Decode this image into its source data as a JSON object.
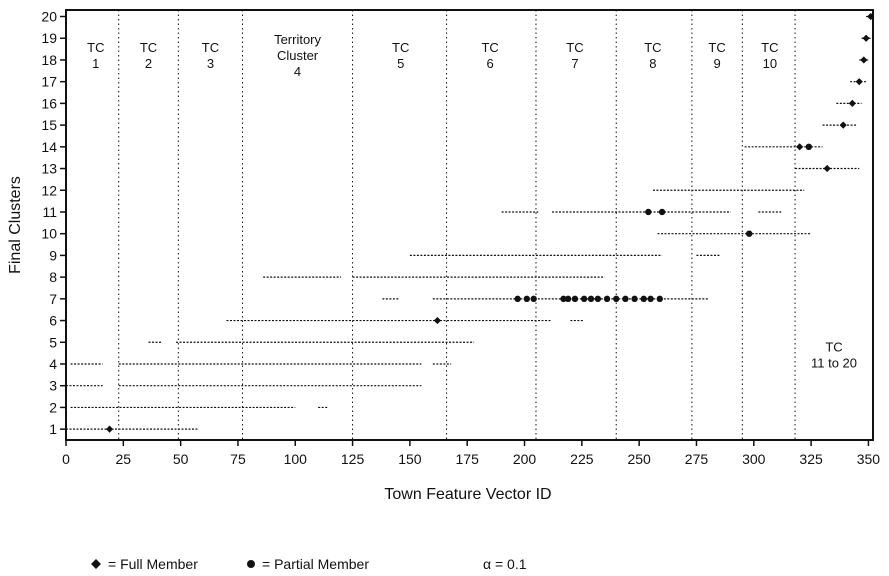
{
  "chart_data": {
    "type": "scatter",
    "xlabel": "Town Feature Vector ID",
    "ylabel": "Final Clusters",
    "xlim": [
      0,
      352
    ],
    "ylim": [
      0.5,
      20.3
    ],
    "x_ticks": [
      0,
      25,
      50,
      75,
      100,
      125,
      150,
      175,
      200,
      225,
      250,
      275,
      300,
      325,
      350
    ],
    "y_ticks": [
      1,
      2,
      3,
      4,
      5,
      6,
      7,
      8,
      9,
      10,
      11,
      12,
      13,
      14,
      15,
      16,
      17,
      18,
      19,
      20
    ],
    "grid": false,
    "boundaries": [
      23,
      49,
      77,
      125,
      166,
      205,
      240,
      273,
      295,
      318
    ],
    "annotations": [
      {
        "lines": [
          "TC",
          "1"
        ],
        "x": 13,
        "y": 18
      },
      {
        "lines": [
          "TC",
          "2"
        ],
        "x": 36,
        "y": 18
      },
      {
        "lines": [
          "TC",
          "3"
        ],
        "x": 63,
        "y": 18
      },
      {
        "lines": [
          "Territory",
          "Cluster",
          "4"
        ],
        "x": 101,
        "y": 18
      },
      {
        "lines": [
          "TC",
          "5"
        ],
        "x": 146,
        "y": 18
      },
      {
        "lines": [
          "TC",
          "6"
        ],
        "x": 185,
        "y": 18
      },
      {
        "lines": [
          "TC",
          "7"
        ],
        "x": 222,
        "y": 18
      },
      {
        "lines": [
          "TC",
          "8"
        ],
        "x": 256,
        "y": 18
      },
      {
        "lines": [
          "TC",
          "9"
        ],
        "x": 284,
        "y": 18
      },
      {
        "lines": [
          "TC",
          "10"
        ],
        "x": 307,
        "y": 18
      },
      {
        "lines": [
          "TC",
          "11 to 20"
        ],
        "x": 335,
        "y": 4.2
      }
    ],
    "series": [
      {
        "name": "Full Member",
        "points": [
          [
            19,
            1
          ],
          [
            162,
            6
          ],
          [
            332,
            13
          ],
          [
            320,
            14
          ],
          [
            339,
            15
          ],
          [
            343,
            16
          ],
          [
            346,
            17
          ],
          [
            348,
            18
          ],
          [
            349,
            19
          ],
          [
            351,
            20
          ]
        ]
      },
      {
        "name": "Partial Member",
        "points": [
          [
            197,
            7
          ],
          [
            201,
            7
          ],
          [
            204,
            7
          ],
          [
            217,
            7
          ],
          [
            219,
            7
          ],
          [
            222,
            7
          ],
          [
            226,
            7
          ],
          [
            229,
            7
          ],
          [
            232,
            7
          ],
          [
            236,
            7
          ],
          [
            240,
            7
          ],
          [
            244,
            7
          ],
          [
            248,
            7
          ],
          [
            252,
            7
          ],
          [
            255,
            7
          ],
          [
            259,
            7
          ],
          [
            298,
            10
          ],
          [
            254,
            11
          ],
          [
            260,
            11
          ],
          [
            324,
            14
          ]
        ]
      }
    ],
    "membership_ranges": [
      {
        "cluster": 1,
        "segments": [
          [
            0,
            58
          ]
        ]
      },
      {
        "cluster": 2,
        "segments": [
          [
            2,
            100
          ],
          [
            110,
            114
          ]
        ]
      },
      {
        "cluster": 3,
        "segments": [
          [
            0,
            16
          ],
          [
            23,
            155
          ]
        ]
      },
      {
        "cluster": 4,
        "segments": [
          [
            2,
            16
          ],
          [
            23,
            155
          ],
          [
            160,
            168
          ]
        ]
      },
      {
        "cluster": 5,
        "segments": [
          [
            36,
            42
          ],
          [
            48,
            178
          ]
        ]
      },
      {
        "cluster": 6,
        "segments": [
          [
            70,
            212
          ],
          [
            220,
            226
          ]
        ]
      },
      {
        "cluster": 7,
        "segments": [
          [
            138,
            145
          ],
          [
            160,
            280
          ]
        ]
      },
      {
        "cluster": 8,
        "segments": [
          [
            86,
            120
          ],
          [
            125,
            235
          ]
        ]
      },
      {
        "cluster": 9,
        "segments": [
          [
            150,
            260
          ],
          [
            275,
            285
          ]
        ]
      },
      {
        "cluster": 10,
        "segments": [
          [
            258,
            325
          ]
        ]
      },
      {
        "cluster": 11,
        "segments": [
          [
            190,
            206
          ],
          [
            212,
            290
          ],
          [
            302,
            312
          ]
        ]
      },
      {
        "cluster": 12,
        "segments": [
          [
            256,
            322
          ]
        ]
      },
      {
        "cluster": 13,
        "segments": [
          [
            318,
            346
          ]
        ]
      },
      {
        "cluster": 14,
        "segments": [
          [
            296,
            330
          ]
        ]
      },
      {
        "cluster": 15,
        "segments": [
          [
            330,
            345
          ]
        ]
      },
      {
        "cluster": 16,
        "segments": [
          [
            336,
            347
          ]
        ]
      },
      {
        "cluster": 17,
        "segments": [
          [
            342,
            349
          ]
        ]
      },
      {
        "cluster": 18,
        "segments": [
          [
            346,
            350
          ]
        ]
      },
      {
        "cluster": 19,
        "segments": [
          [
            347,
            351
          ]
        ]
      },
      {
        "cluster": 20,
        "segments": [
          [
            349,
            352
          ]
        ]
      }
    ],
    "legend": {
      "full_member": "= Full Member",
      "partial_member": "= Partial Member",
      "alpha": "α = 0.1",
      "placement": "bottom"
    },
    "colors": {
      "ink": "#111111",
      "background": "#ffffff"
    }
  }
}
